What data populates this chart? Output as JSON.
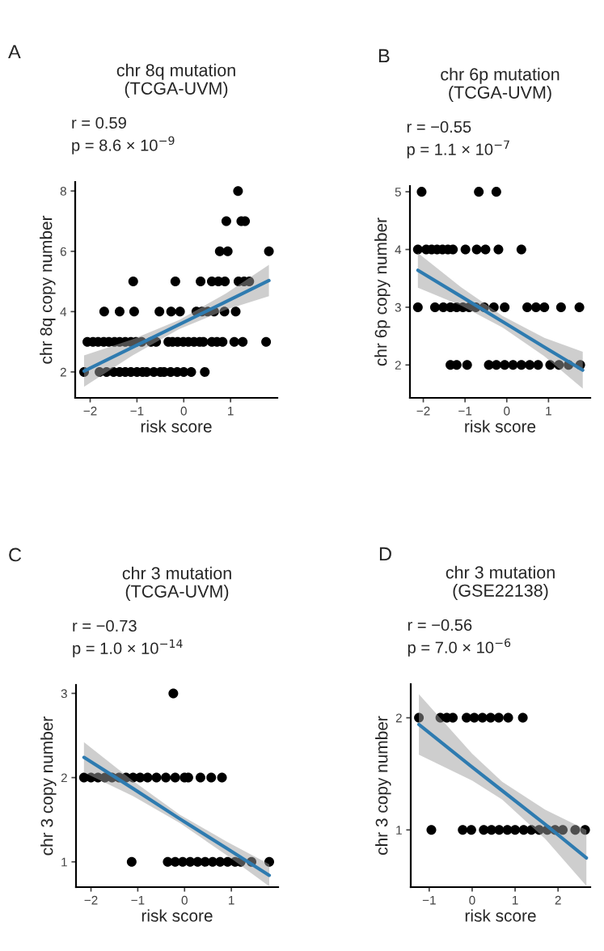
{
  "chart_data": [
    {
      "type": "scatter",
      "title": "chr 8q mutation\n(TCGA-UVM)",
      "xlabel": "risk score",
      "ylabel": "chr 8q copy number",
      "annotations": [
        "A",
        "r = 0.59",
        "p = 8.6 × 10$^{−9}$"
      ],
      "xlim": [
        -2.32,
        2.0
      ],
      "ylim": [
        1.14,
        8.3
      ],
      "xticks": [
        -2,
        -1,
        0,
        1
      ],
      "yticks": [
        2,
        4,
        6,
        8
      ],
      "series": [
        {
          "marker": "circle",
          "color": "#000000",
          "x": [
            1.16,
            0.91,
            1.23,
            1.31,
            0.77,
            0.94,
            1.82,
            -1.08,
            -0.18,
            0.36,
            0.6,
            0.74,
            0.88,
            1.17,
            1.29,
            1.4,
            -1.7,
            -1.37,
            -1.06,
            -0.52,
            -0.27,
            -0.08,
            0.27,
            0.39,
            0.51,
            0.65,
            0.87,
            1.11,
            -2.06,
            -1.94,
            -1.83,
            -1.71,
            -1.6,
            -1.48,
            -1.37,
            -1.25,
            -1.13,
            -1.02,
            -0.9,
            -0.7,
            -0.59,
            -0.33,
            -0.24,
            -0.13,
            -0.01,
            0.1,
            0.22,
            0.34,
            0.42,
            0.6,
            0.71,
            0.83,
            1.08,
            1.26,
            1.76,
            -2.13,
            -1.8,
            -1.65,
            -1.5,
            -1.37,
            -1.25,
            -1.13,
            -1.0,
            -0.88,
            -0.79,
            -0.64,
            -0.5,
            -0.42,
            -0.28,
            -0.14,
            0.0,
            0.16,
            0.45
          ],
          "values": [
            8,
            7,
            7,
            7,
            6,
            6,
            6,
            5,
            5,
            5,
            5,
            5,
            5,
            5,
            5,
            5,
            4,
            4,
            4,
            4,
            4,
            4,
            4,
            4,
            4,
            4,
            4,
            4,
            3,
            3,
            3,
            3,
            3,
            3,
            3,
            3,
            3,
            3,
            3,
            3,
            3,
            3,
            3,
            3,
            3,
            3,
            3,
            3,
            3,
            3,
            3,
            3,
            3,
            3,
            3,
            2,
            2,
            2,
            2,
            2,
            2,
            2,
            2,
            2,
            2,
            2,
            2,
            2,
            2,
            2,
            2,
            2,
            2
          ]
        },
        {
          "type": "line",
          "color": "#2e7bb0",
          "x": [
            -2.13,
            -1.1,
            -0.1,
            0.9,
            1.82
          ],
          "values": [
            2.03,
            2.81,
            3.57,
            4.33,
            5.03
          ],
          "lower": [
            1.51,
            2.54,
            3.42,
            4.06,
            4.51
          ],
          "upper": [
            2.55,
            3.08,
            3.72,
            4.6,
            5.55
          ]
        }
      ]
    },
    {
      "type": "scatter",
      "title": "chr 6p mutation\n(TCGA-UVM)",
      "xlabel": "risk score",
      "ylabel": "chr 6p copy number",
      "annotations": [
        "B",
        "r = −0.55",
        "p = 1.1 × 10$^{−7}$"
      ],
      "xlim": [
        -2.32,
        2.0
      ],
      "ylim": [
        1.43,
        5.1
      ],
      "xticks": [
        -2,
        -1,
        0,
        1
      ],
      "yticks": [
        2,
        3,
        4,
        5
      ],
      "series": [
        {
          "marker": "circle",
          "color": "#000000",
          "x": [
            -2.04,
            -0.67,
            -0.25,
            -2.13,
            -1.93,
            -1.8,
            -1.67,
            -1.54,
            -1.41,
            -1.29,
            -0.99,
            -0.72,
            -0.51,
            -0.2,
            0.35,
            -2.13,
            -1.72,
            -1.52,
            -1.35,
            -1.2,
            -1.05,
            -0.9,
            -0.74,
            -0.54,
            -0.31,
            -0.05,
            0.49,
            0.7,
            0.9,
            1.3,
            1.74,
            -1.35,
            -1.2,
            -0.95,
            -0.43,
            -0.25,
            -0.05,
            0.15,
            0.35,
            0.55,
            0.75,
            1.04,
            1.25,
            1.48,
            1.76
          ],
          "values": [
            5,
            5,
            5,
            4,
            4,
            4,
            4,
            4,
            4,
            4,
            4,
            4,
            4,
            4,
            4,
            3,
            3,
            3,
            3,
            3,
            3,
            3,
            3,
            3,
            3,
            3,
            3,
            3,
            3,
            3,
            3,
            2,
            2,
            2,
            2,
            2,
            2,
            2,
            2,
            2,
            2,
            2,
            2,
            2,
            2
          ]
        },
        {
          "type": "line",
          "color": "#2e7bb0",
          "x": [
            -2.13,
            -1.1,
            -0.1,
            0.9,
            1.82
          ],
          "values": [
            3.64,
            3.19,
            2.75,
            2.31,
            1.91
          ],
          "lower": [
            3.34,
            3.03,
            2.65,
            2.15,
            1.59
          ],
          "upper": [
            3.94,
            3.35,
            2.85,
            2.47,
            2.23
          ]
        }
      ]
    },
    {
      "type": "scatter",
      "title": "chr 3 mutation\n(TCGA-UVM)",
      "xlabel": "risk score",
      "ylabel": "chr 3 copy number",
      "annotations": [
        "C",
        "r = −0.73",
        "p = 1.0 × 10$^{−14}$"
      ],
      "xlim": [
        -2.32,
        2.0
      ],
      "ylim": [
        0.7,
        3.1
      ],
      "xticks": [
        -2,
        -1,
        0,
        1
      ],
      "yticks": [
        1,
        2,
        3
      ],
      "series": [
        {
          "marker": "circle",
          "color": "#000000",
          "x": [
            -0.24,
            -2.15,
            -2.0,
            -1.85,
            -1.7,
            -1.55,
            -1.4,
            -1.25,
            -1.1,
            -0.95,
            -0.79,
            -0.6,
            -0.4,
            -0.2,
            0.0,
            0.08,
            0.34,
            0.57,
            0.8,
            -1.13,
            -0.36,
            -0.2,
            -0.04,
            0.12,
            0.28,
            0.44,
            0.6,
            0.76,
            0.92,
            1.08,
            1.2,
            1.43,
            1.81
          ],
          "values": [
            3,
            2,
            2,
            2,
            2,
            2,
            2,
            2,
            2,
            2,
            2,
            2,
            2,
            2,
            2,
            2,
            2,
            2,
            2,
            1,
            1,
            1,
            1,
            1,
            1,
            1,
            1,
            1,
            1,
            1,
            1,
            1,
            1
          ]
        },
        {
          "type": "line",
          "color": "#2e7bb0",
          "x": [
            -2.15,
            -1.1,
            -0.1,
            0.9,
            1.81
          ],
          "values": [
            2.24,
            1.87,
            1.51,
            1.16,
            0.84
          ],
          "lower": [
            2.06,
            1.78,
            1.46,
            1.08,
            0.71
          ],
          "upper": [
            2.42,
            1.96,
            1.56,
            1.24,
            0.97
          ]
        }
      ]
    },
    {
      "type": "scatter",
      "title": "chr 3 mutation\n(GSE22138)",
      "xlabel": "risk score",
      "ylabel": "chr 3 copy number",
      "annotations": [
        "D",
        "r = −0.56",
        "p = 7.0 × 10$^{−6}$"
      ],
      "xlim": [
        -1.43,
        2.75
      ],
      "ylim": [
        0.49,
        2.3
      ],
      "xticks": [
        -1,
        0,
        1,
        2
      ],
      "yticks": [
        1,
        2
      ],
      "series": [
        {
          "marker": "circle",
          "color": "#000000",
          "x": [
            -1.24,
            -0.74,
            -0.59,
            -0.45,
            -0.13,
            0.05,
            0.24,
            0.43,
            0.62,
            0.84,
            1.18,
            -0.95,
            -0.22,
            -0.02,
            0.27,
            0.45,
            0.63,
            0.82,
            1.0,
            1.2,
            1.38,
            1.56,
            1.75,
            1.93,
            2.11,
            2.4,
            2.63
          ],
          "values": [
            2,
            2,
            2,
            2,
            2,
            2,
            2,
            2,
            2,
            2,
            2,
            1,
            1,
            1,
            1,
            1,
            1,
            1,
            1,
            1,
            1,
            1,
            1,
            1,
            1,
            1,
            1
          ]
        },
        {
          "type": "line",
          "color": "#2e7bb0",
          "x": [
            -1.24,
            0.0,
            0.7,
            1.7,
            2.66
          ],
          "values": [
            1.94,
            1.56,
            1.35,
            1.05,
            0.75
          ],
          "lower": [
            1.67,
            1.44,
            1.27,
            0.92,
            0.5
          ],
          "upper": [
            2.21,
            1.68,
            1.43,
            1.18,
            1.0
          ]
        }
      ]
    }
  ]
}
